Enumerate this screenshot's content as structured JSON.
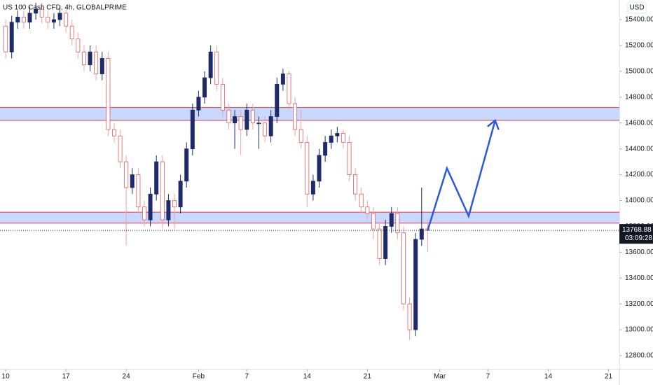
{
  "chart_data": {
    "type": "candlestick",
    "title": "US 100 Cash CFD, 4h, GLOBALPRIME",
    "currency": "USD",
    "x": [
      0,
      0.5,
      1,
      1.5,
      2,
      2.5,
      3,
      3.5,
      4,
      4.5,
      5,
      5.5,
      6,
      6.5,
      7,
      7.5,
      8,
      8.5,
      9,
      9.5,
      10,
      10.5,
      11,
      11.5,
      12,
      12.5,
      13,
      13.5,
      14,
      14.5,
      15,
      15.5,
      16,
      16.5,
      17,
      17.5,
      18,
      18.5,
      19,
      19.5,
      20,
      20.5,
      21,
      21.5,
      22,
      22.5,
      23,
      23.5,
      24,
      24.5,
      25,
      25.5,
      26,
      26.5,
      27,
      27.5,
      28,
      28.5,
      29,
      29.5,
      30,
      30.5,
      31,
      31.5,
      32,
      32.5,
      33,
      33.5,
      34,
      34.5,
      35
    ],
    "open": [
      15350,
      15150,
      15380,
      15420,
      15380,
      15450,
      15480,
      15420,
      15380,
      15400,
      15450,
      15350,
      15250,
      15150,
      15050,
      15150,
      14980,
      15100,
      14550,
      14500,
      14300,
      14100,
      14200,
      13950,
      13850,
      14050,
      14300,
      13850,
      14000,
      13950,
      14150,
      14400,
      14700,
      14800,
      14950,
      15150,
      14900,
      14700,
      14600,
      14650,
      14550,
      14700,
      14600,
      14600,
      14500,
      14650,
      14900,
      14980,
      14750,
      14550,
      14450,
      14050,
      14150,
      14350,
      14450,
      14500,
      14520,
      14450,
      14200,
      14050,
      13950,
      13900,
      13780,
      13550,
      13800,
      13900,
      13750,
      13200,
      13000,
      13700,
      13780
    ],
    "high": [
      15400,
      15430,
      15470,
      15470,
      15500,
      15530,
      15530,
      15470,
      15450,
      15500,
      15500,
      15400,
      15300,
      15200,
      15200,
      15200,
      15150,
      15150,
      14600,
      14550,
      14350,
      14250,
      14250,
      14000,
      14100,
      14350,
      14350,
      14050,
      14050,
      14200,
      14450,
      14750,
      14850,
      15000,
      15200,
      15200,
      14950,
      14750,
      14700,
      14700,
      14750,
      14750,
      14650,
      14650,
      14700,
      14950,
      15020,
      15000,
      14800,
      14700,
      14500,
      14200,
      14400,
      14500,
      14550,
      14570,
      14550,
      14500,
      14250,
      14100,
      14000,
      13950,
      13830,
      13850,
      13950,
      13950,
      13800,
      13250,
      13750,
      14100,
      13850
    ],
    "low": [
      15100,
      15100,
      15330,
      15330,
      15330,
      15400,
      15370,
      15330,
      15330,
      15350,
      15300,
      15200,
      15100,
      15000,
      15000,
      14930,
      14930,
      14500,
      14450,
      14250,
      13650,
      14050,
      13900,
      13800,
      13800,
      14000,
      13780,
      13800,
      13780,
      13900,
      14100,
      14350,
      14650,
      14750,
      14900,
      14850,
      14650,
      14550,
      14400,
      14350,
      14500,
      14550,
      14400,
      14450,
      14450,
      14600,
      14850,
      14700,
      14500,
      14400,
      13950,
      14000,
      14100,
      14300,
      14400,
      14450,
      14400,
      14150,
      14000,
      13900,
      13850,
      13700,
      13500,
      13500,
      13750,
      13700,
      13150,
      12920,
      12950,
      13650,
      13600
    ],
    "close": [
      15150,
      15380,
      15420,
      15380,
      15450,
      15480,
      15420,
      15380,
      15400,
      15450,
      15350,
      15250,
      15150,
      15050,
      15150,
      14980,
      15100,
      14550,
      14500,
      14300,
      14100,
      14200,
      13950,
      13850,
      14050,
      14300,
      13850,
      14000,
      13950,
      14150,
      14400,
      14700,
      14800,
      14950,
      15150,
      14900,
      14700,
      14600,
      14650,
      14550,
      14700,
      14600,
      14600,
      14500,
      14650,
      14900,
      14980,
      14750,
      14550,
      14450,
      14050,
      14150,
      14350,
      14450,
      14500,
      14520,
      14450,
      14200,
      14050,
      13950,
      13900,
      13780,
      13550,
      13800,
      13900,
      13750,
      13200,
      13000,
      13700,
      13780,
      13768.88
    ],
    "up_color": "#1f2a6b",
    "down_color": "#f0a3a3",
    "zones": [
      {
        "from": 14620,
        "to": 14720
      },
      {
        "from": 13825,
        "to": 13910
      }
    ],
    "zone_color": "#2962ff",
    "zone_border": "#f23645",
    "projection": {
      "x": [
        35,
        36.6,
        38.4,
        40.6
      ],
      "values": [
        13770,
        14250,
        13880,
        14620
      ],
      "color": "#2a5bd7"
    },
    "last_price": 13768.88,
    "countdown": "03:09:28",
    "xlim": [
      -0.47,
      50.9
    ],
    "ylim": [
      12697,
      15552
    ],
    "xticks": [
      {
        "value": 0,
        "label": "10"
      },
      {
        "value": 5,
        "label": "17"
      },
      {
        "value": 10,
        "label": "24"
      },
      {
        "value": 16,
        "label": "Feb"
      },
      {
        "value": 20,
        "label": "7"
      },
      {
        "value": 25,
        "label": "14"
      },
      {
        "value": 30,
        "label": "21"
      },
      {
        "value": 36,
        "label": "Mar"
      },
      {
        "value": 40,
        "label": "7"
      },
      {
        "value": 45,
        "label": "14"
      },
      {
        "value": 50,
        "label": "21"
      }
    ],
    "yticks": [
      {
        "value": 12800,
        "label": "12800.00"
      },
      {
        "value": 13000,
        "label": "13000.00"
      },
      {
        "value": 13200,
        "label": "13200.00"
      },
      {
        "value": 13400,
        "label": "13400.00"
      },
      {
        "value": 13600,
        "label": "13600.00"
      },
      {
        "value": 13800,
        "label": "13800.00"
      },
      {
        "value": 14000,
        "label": "14000.00"
      },
      {
        "value": 14200,
        "label": "14200.00"
      },
      {
        "value": 14400,
        "label": "14400.00"
      },
      {
        "value": 14600,
        "label": "14600.00"
      },
      {
        "value": 14800,
        "label": "14800.00"
      },
      {
        "value": 15000,
        "label": "15000.00"
      },
      {
        "value": 15200,
        "label": "15200.00"
      },
      {
        "value": 15400,
        "label": "15400.00"
      }
    ]
  }
}
